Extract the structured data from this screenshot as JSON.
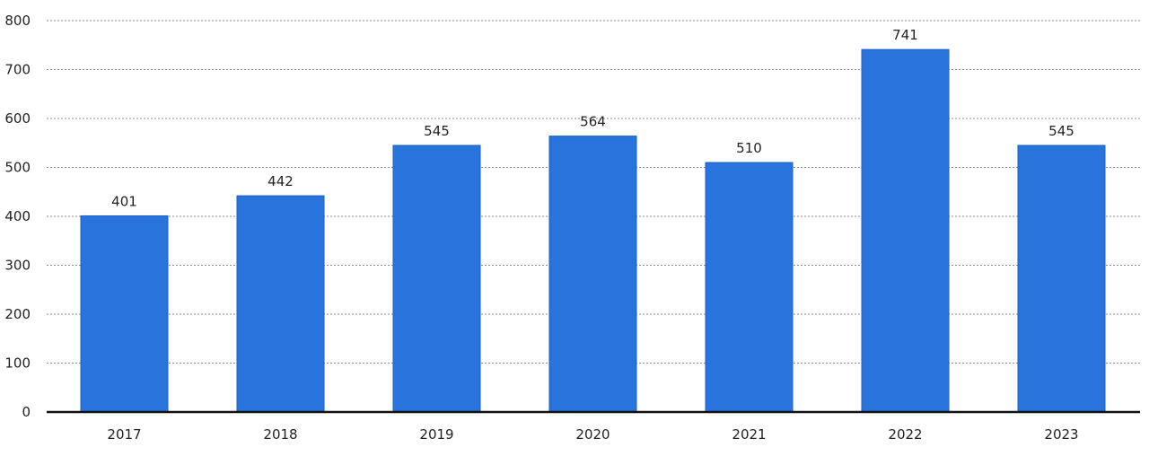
{
  "chart_data": {
    "type": "bar",
    "categories": [
      "2017",
      "2018",
      "2019",
      "2020",
      "2021",
      "2022",
      "2023"
    ],
    "values": [
      401,
      442,
      545,
      564,
      510,
      741,
      545
    ],
    "title": "",
    "xlabel": "",
    "ylabel": "",
    "ylim": [
      0,
      800
    ],
    "yticks": [
      0,
      100,
      200,
      300,
      400,
      500,
      600,
      700,
      800
    ],
    "grid": true,
    "legend": "none",
    "data_labels": true,
    "bar_color": "#2874dc",
    "bar_edge_color": "#1a5fc0"
  }
}
